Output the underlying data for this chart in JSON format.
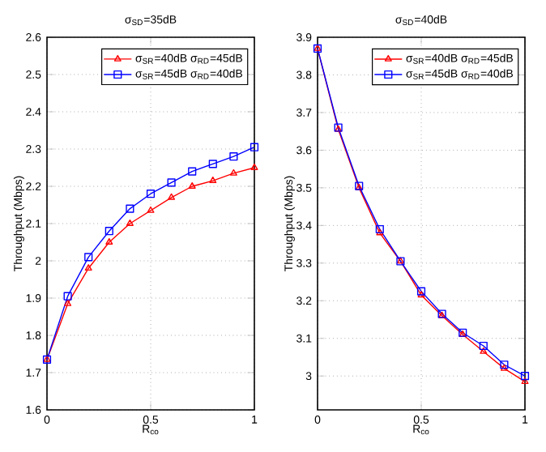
{
  "chart_data": [
    {
      "type": "line",
      "title": "σ$_{SD}$=35dB",
      "xlabel": "R$_{co}$",
      "ylabel": "Throughput (Mbps)",
      "x": [
        0,
        0.1,
        0.2,
        0.3,
        0.4,
        0.5,
        0.6,
        0.7,
        0.8,
        0.9,
        1
      ],
      "xlim": [
        0,
        1
      ],
      "xticks": [
        0,
        0.5,
        1
      ],
      "ylim": [
        1.6,
        2.6
      ],
      "yticks": [
        1.6,
        1.7,
        1.8,
        1.9,
        2,
        2.1,
        2.2,
        2.3,
        2.4,
        2.5,
        2.6
      ],
      "grid": true,
      "legend": "top right",
      "series": [
        {
          "name": "σ$_{SR}$=40dB σ$_{RD}$=45dB",
          "color": "#ff0000",
          "marker": "triangle",
          "values": [
            1.735,
            1.885,
            1.98,
            2.05,
            2.1,
            2.135,
            2.17,
            2.2,
            2.215,
            2.235,
            2.25
          ]
        },
        {
          "name": "σ$_{SR}$=45dB σ$_{RD}$=40dB",
          "color": "#0000ff",
          "marker": "square",
          "values": [
            1.735,
            1.905,
            2.01,
            2.08,
            2.14,
            2.18,
            2.21,
            2.24,
            2.26,
            2.28,
            2.305
          ]
        }
      ]
    },
    {
      "type": "line",
      "title": "σ$_{SD}$=40dB",
      "xlabel": "R$_{co}$",
      "ylabel": "Throughput (Mbps)",
      "x": [
        0,
        0.1,
        0.2,
        0.3,
        0.4,
        0.5,
        0.6,
        0.7,
        0.8,
        0.9,
        1
      ],
      "xlim": [
        0,
        1
      ],
      "xticks": [
        0,
        0.5,
        1
      ],
      "ylim": [
        2.91,
        3.9
      ],
      "yticks": [
        3,
        3.1,
        3.2,
        3.3,
        3.4,
        3.5,
        3.6,
        3.7,
        3.8,
        3.9
      ],
      "grid": true,
      "legend": "top right",
      "series": [
        {
          "name": "σ$_{SR}$=40dB σ$_{RD}$=45dB",
          "color": "#ff0000",
          "marker": "triangle",
          "values": [
            3.87,
            3.655,
            3.5,
            3.38,
            3.305,
            3.215,
            3.16,
            3.11,
            3.065,
            3.02,
            2.985
          ]
        },
        {
          "name": "σ$_{SR}$=45dB σ$_{RD}$=40dB",
          "color": "#0000ff",
          "marker": "square",
          "values": [
            3.87,
            3.66,
            3.505,
            3.39,
            3.305,
            3.225,
            3.165,
            3.115,
            3.08,
            3.03,
            3.0
          ]
        }
      ]
    }
  ]
}
